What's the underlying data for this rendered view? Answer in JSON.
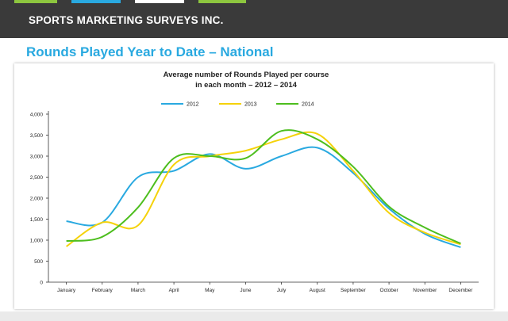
{
  "header": {
    "brand": "SPORTS MARKETING SURVEYS INC.",
    "background_color": "#3a3a3a",
    "stripe_colors": [
      "#8dc63f",
      "#29a9e0",
      "#ffffff",
      "#8dc63f"
    ]
  },
  "section_title": "Rounds Played Year to Date – National",
  "section_title_color": "#29a9e0",
  "chart_data": {
    "type": "line",
    "title": "Average number of Rounds Played per course",
    "subtitle": "in each month – 2012 – 2014",
    "categories": [
      "January",
      "February",
      "March",
      "April",
      "May",
      "June",
      "July",
      "August",
      "September",
      "October",
      "November",
      "December"
    ],
    "series": [
      {
        "name": "2012",
        "color": "#29a9e0",
        "values": [
          1450,
          1420,
          2500,
          2650,
          3050,
          2700,
          3000,
          3200,
          2600,
          1750,
          1150,
          830
        ]
      },
      {
        "name": "2013",
        "color": "#f5d20a",
        "values": [
          850,
          1420,
          1350,
          2800,
          3000,
          3130,
          3400,
          3530,
          2650,
          1650,
          1180,
          900
        ]
      },
      {
        "name": "2014",
        "color": "#4dbe1e",
        "values": [
          980,
          1080,
          1780,
          2950,
          3000,
          2950,
          3600,
          3400,
          2750,
          1800,
          1300,
          920
        ]
      }
    ],
    "ylim": [
      0,
      4000
    ],
    "yticks": [
      0,
      500,
      1000,
      1500,
      2000,
      2500,
      3000,
      3500,
      4000
    ],
    "ytick_labels": [
      "0",
      "500",
      "1,000",
      "1,500",
      "2,000",
      "2,500",
      "3,000",
      "3,500",
      "4,000"
    ],
    "grid": false,
    "legend_position": "top"
  }
}
